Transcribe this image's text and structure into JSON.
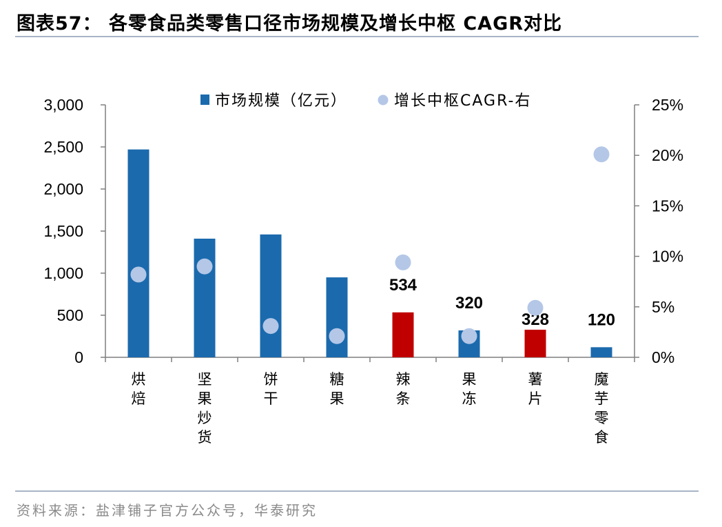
{
  "title": "图表57： 各零食品类零售口径市场规模及增长中枢 CAGR对比",
  "source": "资料来源：盐津铺子官方公众号，华泰研究",
  "colors": {
    "bar": "#1b6aad",
    "bar_highlight": "#c00000",
    "dot": "#b4c7e7",
    "rule": "#a6b4c7",
    "axis": "#7f7f7f"
  },
  "chart_data": {
    "type": "bar",
    "categories": [
      "烘焙",
      "坚果炒货",
      "饼干",
      "糖果",
      "辣条",
      "果冻",
      "薯片",
      "魔芋零食"
    ],
    "series": [
      {
        "name": "市场规模（亿元）",
        "type": "bar",
        "axis": "left",
        "values": [
          2470,
          1410,
          1460,
          950,
          534,
          320,
          328,
          120
        ],
        "highlight": [
          false,
          false,
          false,
          false,
          true,
          false,
          true,
          false
        ],
        "data_labels": [
          "",
          "",
          "",
          "",
          "534",
          "320",
          "328",
          "120"
        ]
      },
      {
        "name": "增长中枢CAGR-右",
        "type": "scatter",
        "axis": "right",
        "values": [
          8.2,
          9.0,
          3.1,
          2.1,
          9.4,
          2.1,
          4.9,
          20.1
        ]
      }
    ],
    "y_left": {
      "ylim": [
        0,
        3000
      ],
      "ticks": [
        "0",
        "500",
        "1,000",
        "1,500",
        "2,000",
        "2,500",
        "3,000"
      ]
    },
    "y_right": {
      "ylim": [
        0,
        25
      ],
      "ticks": [
        "0%",
        "5%",
        "10%",
        "15%",
        "20%",
        "25%"
      ]
    },
    "legend": {
      "placement": "top-center",
      "entries": [
        "市场规模（亿元）",
        "增长中枢CAGR-右"
      ]
    },
    "grid": false
  }
}
